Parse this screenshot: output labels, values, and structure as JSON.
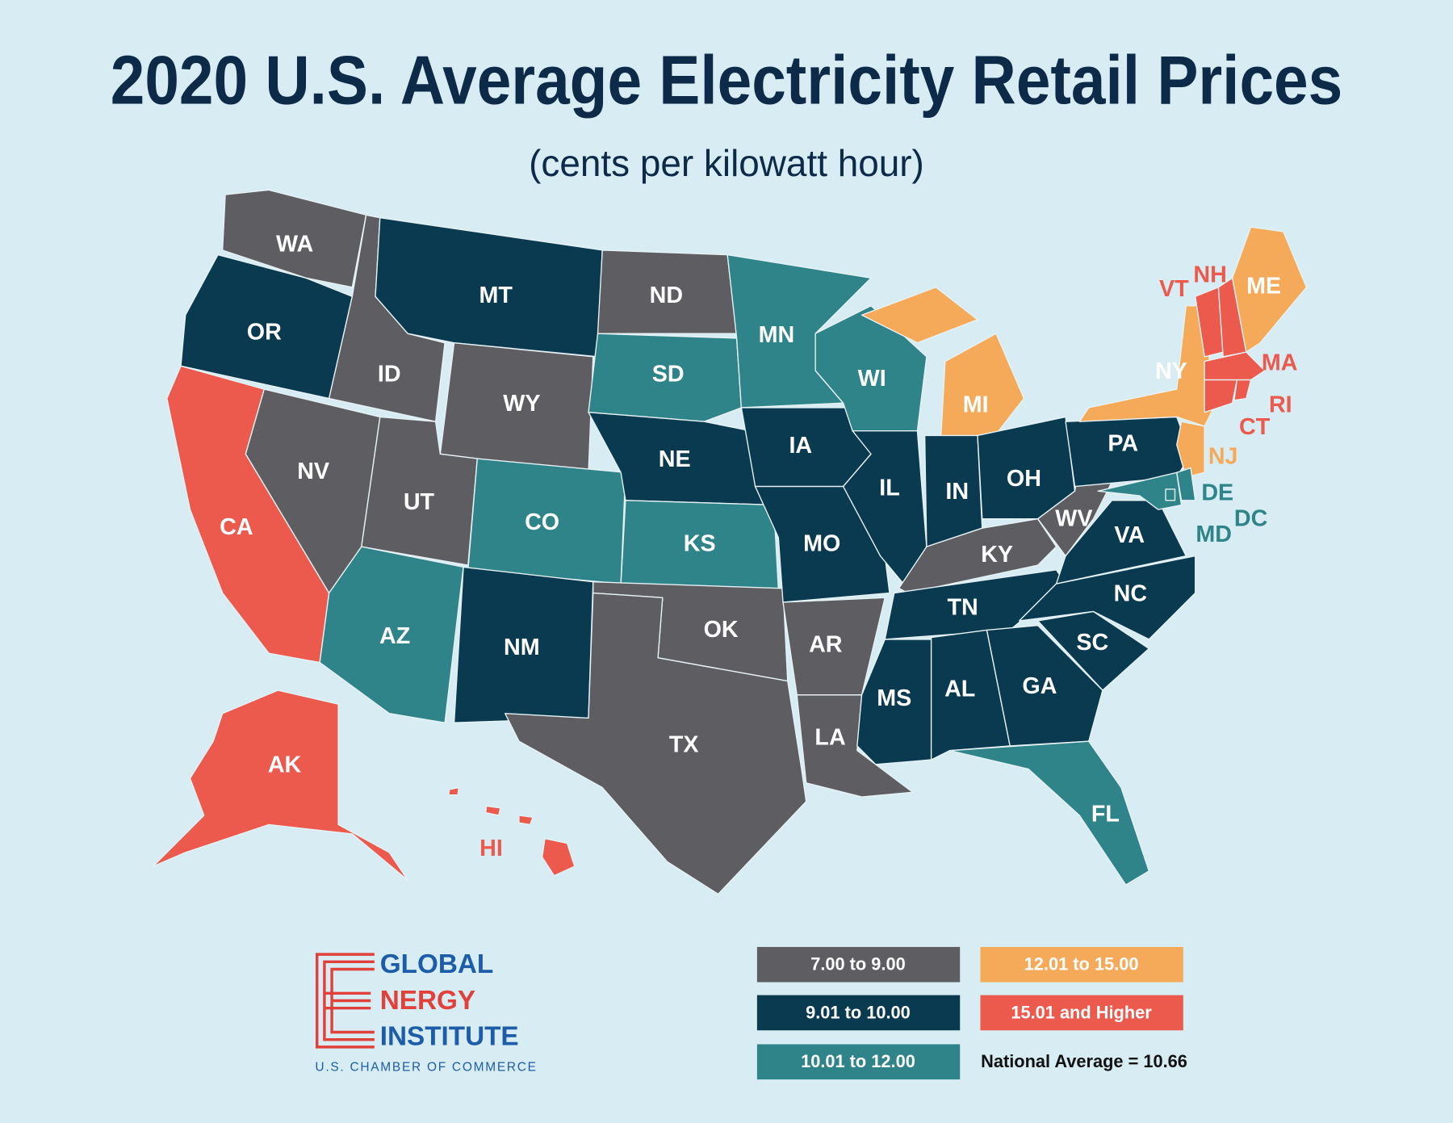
{
  "map": {
    "title": "2020 U.S. Average Electricity Retail Prices",
    "subtitle": "(cents per kilowatt hour)",
    "legend": [
      {
        "label": "7.00 to 9.00",
        "color": "#5e5e62"
      },
      {
        "label": "9.01 to 10.00",
        "color": "#0a3a50"
      },
      {
        "label": "10.01 to 12.00",
        "color": "#2f8489"
      },
      {
        "label": "12.01 to 15.00",
        "color": "#f5aa5a"
      },
      {
        "label": "15.01 and Higher",
        "color": "#ec5a4e"
      }
    ],
    "note": "National Average = 10.66",
    "states": [
      {
        "label": "WA",
        "class": 0
      },
      {
        "label": "OR",
        "class": 1
      },
      {
        "label": "CA",
        "class": 4
      },
      {
        "label": "ID",
        "class": 0
      },
      {
        "label": "NV",
        "class": 0
      },
      {
        "label": "MT",
        "class": 1
      },
      {
        "label": "WY",
        "class": 0
      },
      {
        "label": "UT",
        "class": 0
      },
      {
        "label": "AZ",
        "class": 2
      },
      {
        "label": "CO",
        "class": 2
      },
      {
        "label": "NM",
        "class": 1
      },
      {
        "label": "ND",
        "class": 0
      },
      {
        "label": "SD",
        "class": 2
      },
      {
        "label": "NE",
        "class": 1
      },
      {
        "label": "KS",
        "class": 2
      },
      {
        "label": "OK",
        "class": 0
      },
      {
        "label": "TX",
        "class": 0
      },
      {
        "label": "MN",
        "class": 2
      },
      {
        "label": "IA",
        "class": 1
      },
      {
        "label": "MO",
        "class": 1
      },
      {
        "label": "AR",
        "class": 0
      },
      {
        "label": "LA",
        "class": 0
      },
      {
        "label": "WI",
        "class": 2
      },
      {
        "label": "IL",
        "class": 1
      },
      {
        "label": "MI",
        "class": 3
      },
      {
        "label": "IN",
        "class": 1
      },
      {
        "label": "OH",
        "class": 1
      },
      {
        "label": "KY",
        "class": 0
      },
      {
        "label": "TN",
        "class": 1
      },
      {
        "label": "MS",
        "class": 1
      },
      {
        "label": "AL",
        "class": 1
      },
      {
        "label": "GA",
        "class": 1
      },
      {
        "label": "FL",
        "class": 2
      },
      {
        "label": "SC",
        "class": 1
      },
      {
        "label": "NC",
        "class": 1
      },
      {
        "label": "VA",
        "class": 1
      },
      {
        "label": "WV",
        "class": 0
      },
      {
        "label": "PA",
        "class": 1
      },
      {
        "label": "NY",
        "class": 3
      },
      {
        "label": "VT",
        "class": 4
      },
      {
        "label": "NH",
        "class": 4
      },
      {
        "label": "ME",
        "class": 3
      },
      {
        "label": "MA",
        "class": 4
      },
      {
        "label": "CT",
        "class": 4
      },
      {
        "label": "RI",
        "class": 4
      },
      {
        "label": "NJ",
        "class": 3
      },
      {
        "label": "DE",
        "class": 2
      },
      {
        "label": "MD",
        "class": 2
      },
      {
        "label": "DC",
        "class": 2
      },
      {
        "label": "AK",
        "class": 4
      },
      {
        "label": "HI",
        "class": 4
      }
    ]
  },
  "logo": {
    "line1": "GLOBAL",
    "line2": "NERGY",
    "line3": "INSTITUTE",
    "tagline": "U.S. CHAMBER OF COMMERCE"
  }
}
